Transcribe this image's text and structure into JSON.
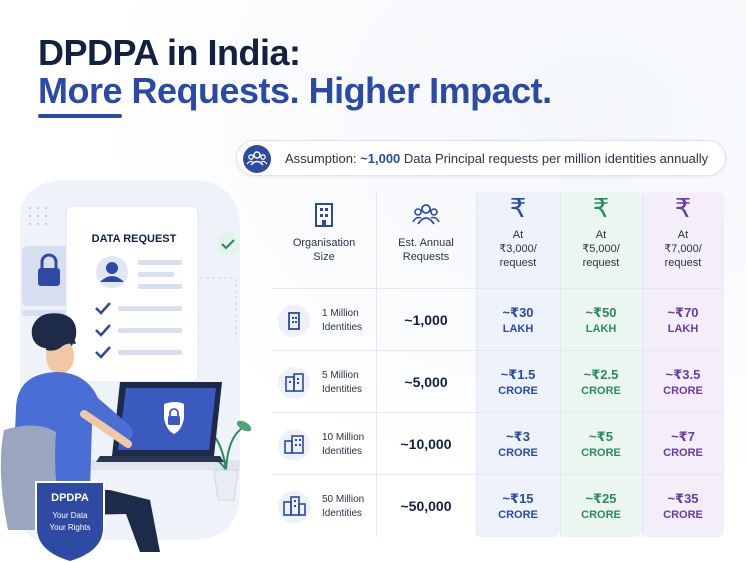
{
  "title_line1": "DPDPA in India:",
  "title_line2": "More Requests. Higher Impact.",
  "assumption_prefix": "Assumption: ",
  "assumption_highlight": "~1,000",
  "assumption_suffix": " Data Principal requests per million identities annually",
  "illustration": {
    "card_title": "DATA REQUEST",
    "shield_title": "DPDPA",
    "shield_line1": "Your Data",
    "shield_line2": "Your Rights"
  },
  "table": {
    "headers": {
      "size_line1": "Organisation",
      "size_line2": "Size",
      "requests_line1": "Est. Annual",
      "requests_line2": "Requests",
      "currency_symbol": "₹",
      "c1_line1": "At",
      "c1_line2": "₹3,000/",
      "c1_line3": "request",
      "c2_line1": "At",
      "c2_line2": "₹5,000/",
      "c2_line3": "request",
      "c3_line1": "At",
      "c3_line2": "₹7,000/",
      "c3_line3": "request"
    },
    "rows": [
      {
        "size1": "1 Million",
        "size2": "Identities",
        "requests": "~1,000",
        "a": "~₹30",
        "a_unit": "LAKH",
        "b": "~₹50",
        "b_unit": "LAKH",
        "c": "~₹70",
        "c_unit": "LAKH"
      },
      {
        "size1": "5 Million",
        "size2": "Identities",
        "requests": "~5,000",
        "a": "~₹1.5",
        "a_unit": "CRORE",
        "b": "~₹2.5",
        "b_unit": "CRORE",
        "c": "~₹3.5",
        "c_unit": "CRORE"
      },
      {
        "size1": "10 Million",
        "size2": "Identities",
        "requests": "~10,000",
        "a": "~₹3",
        "a_unit": "CRORE",
        "b": "~₹5",
        "b_unit": "CRORE",
        "c": "~₹7",
        "c_unit": "CRORE"
      },
      {
        "size1": "50 Million",
        "size2": "Identities",
        "requests": "~50,000",
        "a": "~₹15",
        "a_unit": "CRORE",
        "b": "~₹25",
        "b_unit": "CRORE",
        "c": "~₹35",
        "c_unit": "CRORE"
      }
    ]
  },
  "colors": {
    "navy": "#13213f",
    "blue": "#2b4aa8",
    "green": "#2c8a5f",
    "purple": "#6a3aa8"
  }
}
